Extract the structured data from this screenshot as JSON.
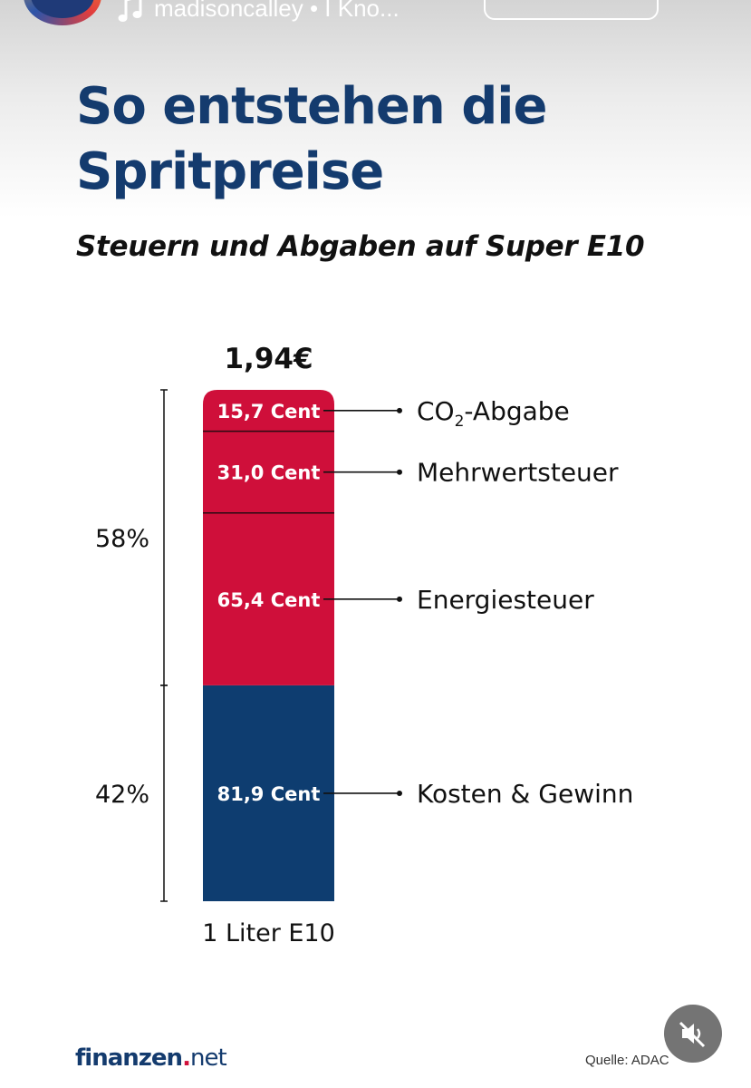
{
  "post_header": {
    "music_text": "madisoncalley • I Kno..."
  },
  "title": "So entstehen die Spritpreise",
  "subtitle": "Steuern und Abgaben auf Super E10",
  "chart_data": {
    "type": "bar",
    "stacked": true,
    "category": "1 Liter E10",
    "total_label": "1,94€",
    "total_value": 1.94,
    "unit": "Cent",
    "segments": [
      {
        "label": "Kosten & Gewinn",
        "value": 81.9,
        "value_label": "81,9 Cent",
        "color": "#0e3d70"
      },
      {
        "label": "Energiesteuer",
        "value": 65.4,
        "value_label": "65,4 Cent",
        "color": "#cf0f3a"
      },
      {
        "label": "Mehrwertsteuer",
        "value": 31.0,
        "value_label": "31,0 Cent",
        "color": "#cf0f3a"
      },
      {
        "label_main": "CO",
        "label_sub": "2",
        "label_rest": "-Abgabe",
        "value": 15.7,
        "value_label": "15,7 Cent",
        "color": "#cf0f3a"
      }
    ],
    "brackets": [
      {
        "label": "58%",
        "segments": [
          1,
          2,
          3
        ]
      },
      {
        "label": "42%",
        "segments": [
          0
        ]
      }
    ]
  },
  "footer": {
    "logo_main": "finanzen",
    "logo_dot": ".",
    "logo_tld": "net",
    "source": "Quelle: ADAC"
  },
  "icons": {
    "music": "music-note-icon",
    "mute": "speaker-muted-icon"
  }
}
